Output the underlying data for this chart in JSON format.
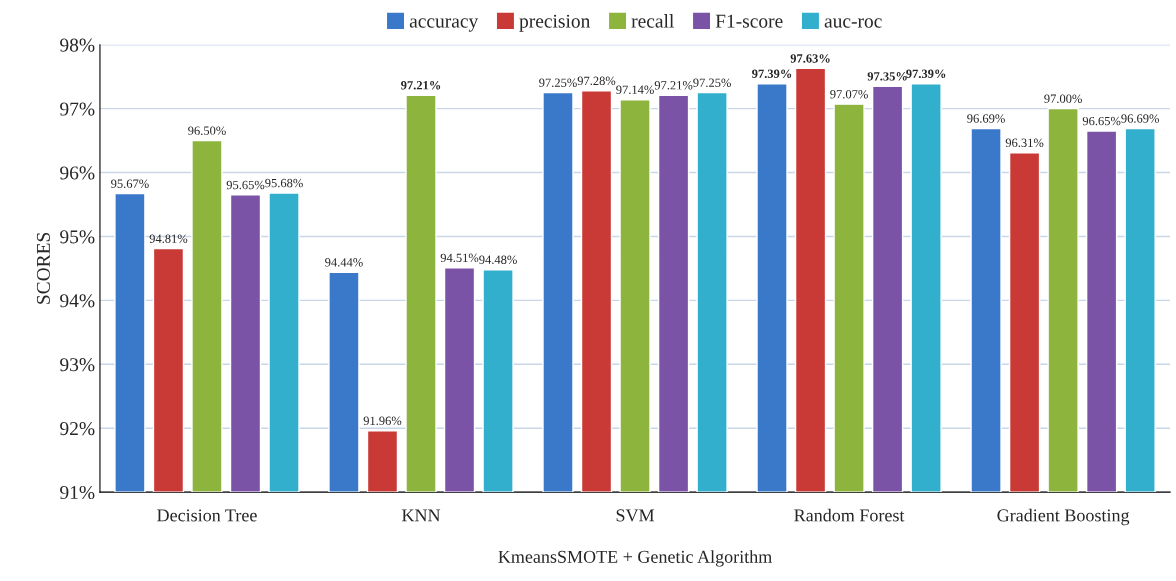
{
  "chart_data": {
    "type": "bar",
    "xlabel": "KmeansSMOTE + Genetic Algorithm",
    "ylabel": "SCORES",
    "categories": [
      "Decision Tree",
      "KNN",
      "SVM",
      "Random Forest",
      "Gradient Boosting"
    ],
    "series": [
      {
        "name": "accuracy",
        "color": "#3a78c9",
        "values": [
          95.67,
          94.44,
          97.25,
          97.39,
          96.69
        ],
        "value_labels": [
          "95.67%",
          "94.44%",
          "97.25%",
          "97.39%",
          "96.69%"
        ]
      },
      {
        "name": "precision",
        "color": "#c93a36",
        "values": [
          94.81,
          91.96,
          97.28,
          97.63,
          96.31
        ],
        "value_labels": [
          "94.81%",
          "91.96%",
          "97.28%",
          "97.63%",
          "96.31%"
        ]
      },
      {
        "name": "recall",
        "color": "#8db43c",
        "values": [
          96.5,
          97.21,
          97.14,
          97.07,
          97.0
        ],
        "value_labels": [
          "96.50%",
          "97.21%",
          "97.14%",
          "97.07%",
          "97.00%"
        ]
      },
      {
        "name": "F1-score",
        "color": "#7a52a6",
        "values": [
          95.65,
          94.51,
          97.21,
          97.35,
          96.65
        ],
        "value_labels": [
          "95.65%",
          "94.51%",
          "97.21%",
          "97.35%",
          "96.65%"
        ]
      },
      {
        "name": "auc-roc",
        "color": "#32afcd",
        "values": [
          95.68,
          94.48,
          97.25,
          97.39,
          96.69
        ],
        "value_labels": [
          "95.68%",
          "94.48%",
          "97.25%",
          "97.39%",
          "96.69%"
        ]
      }
    ],
    "ylim": [
      91,
      98
    ],
    "yticks": [
      {
        "value": 91,
        "label": "91%"
      },
      {
        "value": 92,
        "label": "92%"
      },
      {
        "value": 93,
        "label": "93%"
      },
      {
        "value": 94,
        "label": "94%"
      },
      {
        "value": 95,
        "label": "95%"
      },
      {
        "value": 96,
        "label": "96%"
      },
      {
        "value": 97,
        "label": "97%"
      },
      {
        "value": 98,
        "label": "98%"
      }
    ],
    "grid": "y",
    "legend": "top"
  }
}
